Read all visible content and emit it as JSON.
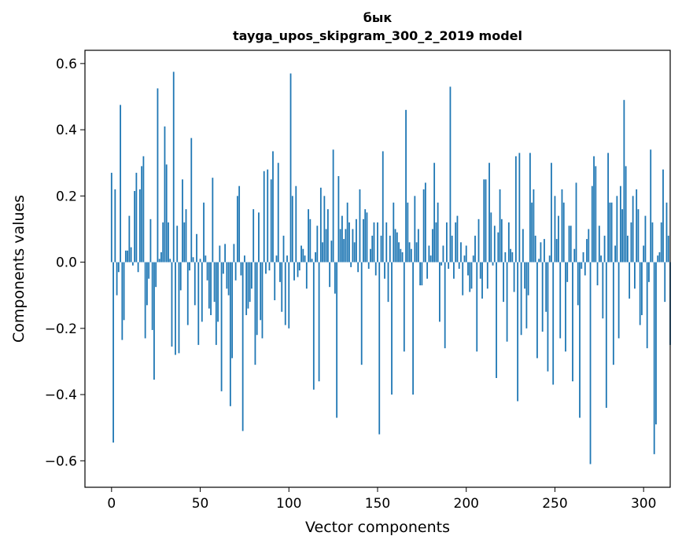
{
  "chart_data": {
    "type": "bar",
    "title": "бык",
    "subtitle": "tayga_upos_skipgram_300_2_2019 model",
    "xlabel": "Vector components",
    "ylabel": "Components values",
    "xlim": [
      -15,
      315
    ],
    "ylim": [
      -0.68,
      0.64
    ],
    "xticks": [
      0,
      50,
      100,
      150,
      200,
      250,
      300
    ],
    "yticks": [
      -0.6,
      -0.4,
      -0.2,
      0.0,
      0.2,
      0.4,
      0.6
    ],
    "xtick_labels": [
      "0",
      "50",
      "100",
      "150",
      "200",
      "250",
      "300"
    ],
    "ytick_labels": [
      "−0.6",
      "−0.4",
      "−0.2",
      "0.0",
      "0.2",
      "0.4",
      "0.6"
    ],
    "grid": false,
    "bar_color": "#1f77b4",
    "values": [
      0.27,
      -0.545,
      0.22,
      -0.1,
      -0.03,
      0.475,
      -0.235,
      -0.175,
      0.035,
      0.035,
      0.14,
      0.045,
      -0.01,
      0.215,
      0.27,
      -0.03,
      0.22,
      0.29,
      0.32,
      -0.23,
      -0.13,
      -0.05,
      0.13,
      -0.205,
      -0.355,
      -0.075,
      0.525,
      0.01,
      0.03,
      0.12,
      0.41,
      0.295,
      0.12,
      0.01,
      -0.255,
      0.575,
      -0.28,
      0.11,
      -0.275,
      -0.085,
      0.25,
      0.12,
      0.16,
      -0.19,
      -0.025,
      0.375,
      0.015,
      -0.13,
      0.085,
      -0.25,
      0.01,
      -0.18,
      0.18,
      0.02,
      -0.055,
      -0.14,
      -0.16,
      0.255,
      -0.12,
      -0.25,
      -0.18,
      0.05,
      -0.39,
      -0.035,
      0.055,
      -0.08,
      -0.1,
      -0.435,
      -0.29,
      0.055,
      -0.055,
      0.2,
      0.23,
      -0.04,
      -0.51,
      0.02,
      -0.16,
      -0.14,
      -0.12,
      -0.08,
      0.16,
      -0.31,
      -0.22,
      0.15,
      -0.175,
      -0.23,
      0.275,
      -0.035,
      0.28,
      -0.025,
      0.25,
      0.335,
      -0.115,
      0.02,
      0.3,
      -0.06,
      -0.15,
      0.08,
      -0.19,
      0.02,
      -0.2,
      0.57,
      0.2,
      -0.055,
      0.23,
      -0.045,
      -0.025,
      0.05,
      0.04,
      0.02,
      -0.08,
      0.16,
      0.13,
      0.01,
      -0.385,
      0.03,
      0.11,
      -0.36,
      0.225,
      0.06,
      0.2,
      0.1,
      0.16,
      -0.075,
      0.065,
      0.34,
      -0.095,
      -0.47,
      0.26,
      0.1,
      0.14,
      0.07,
      0.1,
      0.18,
      0.12,
      -0.015,
      0.1,
      0.06,
      0.13,
      -0.03,
      0.22,
      -0.31,
      0.13,
      0.16,
      0.15,
      -0.02,
      0.04,
      0.08,
      0.12,
      -0.04,
      0.12,
      -0.52,
      0.08,
      0.335,
      -0.05,
      0.12,
      -0.12,
      0.08,
      -0.4,
      0.18,
      0.1,
      0.09,
      0.06,
      0.04,
      0.03,
      -0.27,
      0.46,
      0.18,
      0.06,
      0.04,
      -0.4,
      0.2,
      0.06,
      0.1,
      -0.07,
      -0.07,
      0.22,
      0.24,
      -0.05,
      0.05,
      0.02,
      0.1,
      0.3,
      0.12,
      0.18,
      -0.18,
      -0.01,
      0.05,
      -0.26,
      0.12,
      -0.02,
      0.53,
      0.08,
      -0.05,
      0.12,
      0.14,
      -0.02,
      0.06,
      -0.1,
      0.02,
      0.05,
      -0.04,
      -0.09,
      -0.08,
      0.02,
      0.08,
      -0.27,
      0.13,
      -0.05,
      -0.11,
      0.25,
      0.25,
      -0.08,
      0.3,
      0.15,
      -0.01,
      0.11,
      -0.35,
      0.09,
      0.22,
      0.13,
      -0.12,
      0.03,
      -0.24,
      0.12,
      0.04,
      0.03,
      -0.09,
      0.32,
      -0.42,
      0.33,
      -0.22,
      0.1,
      -0.08,
      -0.2,
      -0.1,
      0.33,
      0.18,
      0.22,
      0.08,
      -0.29,
      0.01,
      0.06,
      -0.21,
      0.07,
      -0.15,
      -0.33,
      0.02,
      0.3,
      -0.37,
      0.2,
      0.07,
      0.14,
      -0.23,
      0.22,
      0.18,
      -0.27,
      -0.06,
      0.11,
      0.11,
      -0.36,
      0.04,
      0.24,
      -0.13,
      -0.47,
      -0.02,
      0.03,
      -0.04,
      0.07,
      0.1,
      -0.61,
      0.23,
      0.32,
      0.29,
      -0.07,
      0.11,
      0.02,
      -0.17,
      0.08,
      -0.44,
      0.33,
      0.18,
      0.18,
      -0.31,
      0.05,
      0.2,
      -0.23,
      0.23,
      0.16,
      0.49,
      0.29,
      0.08,
      -0.11,
      0.12,
      0.2,
      -0.08,
      0.22,
      0.16,
      -0.19,
      -0.16,
      0.05,
      0.14,
      -0.26,
      -0.06,
      0.34,
      0.12,
      -0.58,
      -0.49,
      0.02,
      0.03,
      0.12,
      0.28,
      -0.12,
      0.18,
      0.08,
      -0.25
    ]
  }
}
